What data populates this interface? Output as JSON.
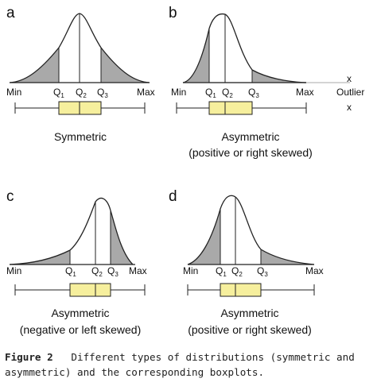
{
  "panels": [
    {
      "id": "a",
      "letter": "a",
      "labels": {
        "min": "Min",
        "q1": "Q",
        "q1_sub": "1",
        "q2": "Q",
        "q2_sub": "2",
        "q3": "Q",
        "q3_sub": "3",
        "max": "Max"
      },
      "caption_lines": [
        "Symmetric"
      ],
      "shape": "symmetric"
    },
    {
      "id": "b",
      "letter": "b",
      "labels": {
        "min": "Min",
        "q1": "Q",
        "q1_sub": "1",
        "q2": "Q",
        "q2_sub": "2",
        "q3": "Q",
        "q3_sub": "3",
        "max": "Max",
        "outlier": "Outlier",
        "outlier_mark": "x"
      },
      "caption_lines": [
        "Asymmetric",
        "(positive or right skewed)"
      ],
      "shape": "right-skewed-with-outlier"
    },
    {
      "id": "c",
      "letter": "c",
      "labels": {
        "min": "Min",
        "q1": "Q",
        "q1_sub": "1",
        "q2": "Q",
        "q2_sub": "2",
        "q3": "Q",
        "q3_sub": "3",
        "max": "Max"
      },
      "caption_lines": [
        "Asymmetric",
        "(negative or left skewed)"
      ],
      "shape": "left-skewed"
    },
    {
      "id": "d",
      "letter": "d",
      "labels": {
        "min": "Min",
        "q1": "Q",
        "q1_sub": "1",
        "q2": "Q",
        "q2_sub": "2",
        "q3": "Q",
        "q3_sub": "3",
        "max": "Max"
      },
      "caption_lines": [
        "Asymmetric",
        "(positive or right skewed)"
      ],
      "shape": "right-skewed"
    }
  ],
  "figure_caption": {
    "label": "Figure 2",
    "text": "Different types of distributions (symmetric and asymmetric) and the corresponding boxplots."
  },
  "colors": {
    "box_fill": "#f6ef9d",
    "tail_fill": "#a9a9a9",
    "line": "#222222"
  }
}
